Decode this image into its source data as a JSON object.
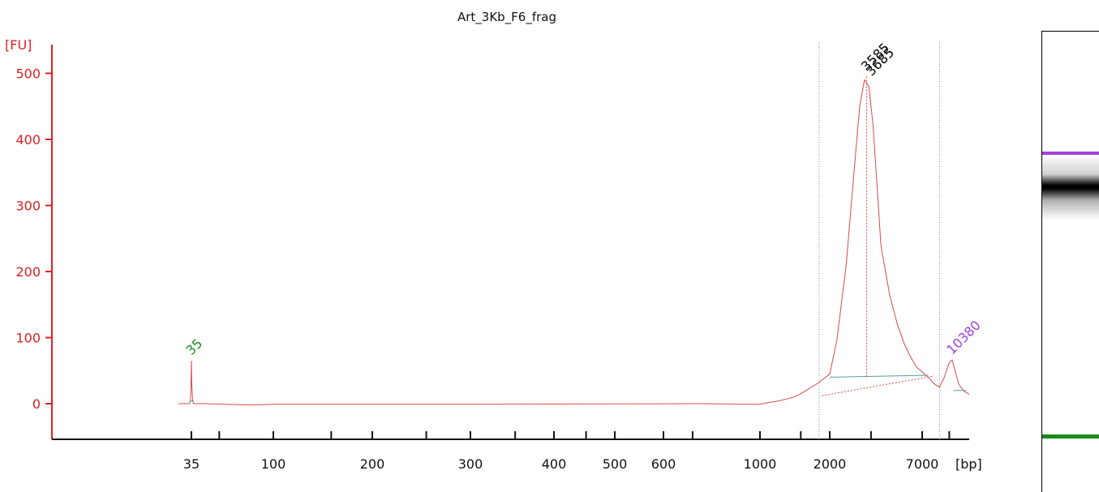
{
  "chart_data": {
    "type": "line",
    "title": "Art_3Kb_F6_frag",
    "ylabel": "[FU]",
    "xlabel": "[bp]",
    "ylim": [
      -50,
      540
    ],
    "yticks": [
      0,
      100,
      200,
      300,
      400,
      500
    ],
    "xtick_labels": [
      "35",
      "100",
      "200",
      "300",
      "400",
      "500",
      "600",
      "1000",
      "2000",
      "7000"
    ],
    "series": [
      {
        "color": "#d94a4a",
        "points": [
          [
            30.0,
            0
          ],
          [
            34.0,
            0
          ],
          [
            34.5,
            2
          ],
          [
            34.8,
            20
          ],
          [
            35.0,
            65
          ],
          [
            35.2,
            30
          ],
          [
            35.5,
            5
          ],
          [
            36.0,
            0
          ],
          [
            40.0,
            0
          ],
          [
            75.0,
            -2
          ],
          [
            80.0,
            -2
          ],
          [
            100.0,
            -1
          ],
          [
            300.0,
            -1
          ],
          [
            750.0,
            0
          ],
          [
            900.0,
            -1
          ],
          [
            1000.0,
            -1
          ],
          [
            1100.0,
            2
          ],
          [
            1200.0,
            4
          ],
          [
            1300.0,
            7
          ],
          [
            1400.0,
            10
          ],
          [
            1500.0,
            15
          ],
          [
            1800.0,
            32
          ],
          [
            2000.0,
            45
          ],
          [
            2200.0,
            95
          ],
          [
            2500.0,
            210
          ],
          [
            2800.0,
            360
          ],
          [
            3000.0,
            450
          ],
          [
            3200.0,
            490
          ],
          [
            3400.0,
            480
          ],
          [
            3600.0,
            420
          ],
          [
            3800.0,
            330
          ],
          [
            4000.0,
            240
          ],
          [
            4500.0,
            165
          ],
          [
            5000.0,
            120
          ],
          [
            5500.0,
            90
          ],
          [
            6000.0,
            70
          ],
          [
            6500.0,
            55
          ],
          [
            7000.0,
            48
          ],
          [
            7700.0,
            38
          ],
          [
            8200.0,
            30
          ],
          [
            8800.0,
            25
          ],
          [
            9300.0,
            38
          ],
          [
            10000.0,
            62
          ],
          [
            10380.0,
            66
          ],
          [
            10800.0,
            50
          ],
          [
            11300.0,
            30
          ],
          [
            12000.0,
            20
          ],
          [
            13000.0,
            14
          ]
        ]
      }
    ],
    "peaks": [
      {
        "label": "35",
        "x": 35,
        "y": 65,
        "color": "#1a8a1a"
      },
      {
        "label": "3585",
        "x": 3300,
        "y": 495,
        "color": "#000000"
      },
      {
        "label": "3685",
        "x": 3300,
        "y": 495,
        "color": "#000000"
      },
      {
        "label": "10380",
        "x": 10380,
        "y": 66,
        "color": "#a040e0"
      }
    ],
    "region": {
      "start": 1800,
      "end": 8800
    },
    "grid": false
  },
  "gel_lane": {
    "upper_marker_color": "#a040e0",
    "lower_marker_color": "#1a8a1a",
    "band_color": "#000000"
  }
}
